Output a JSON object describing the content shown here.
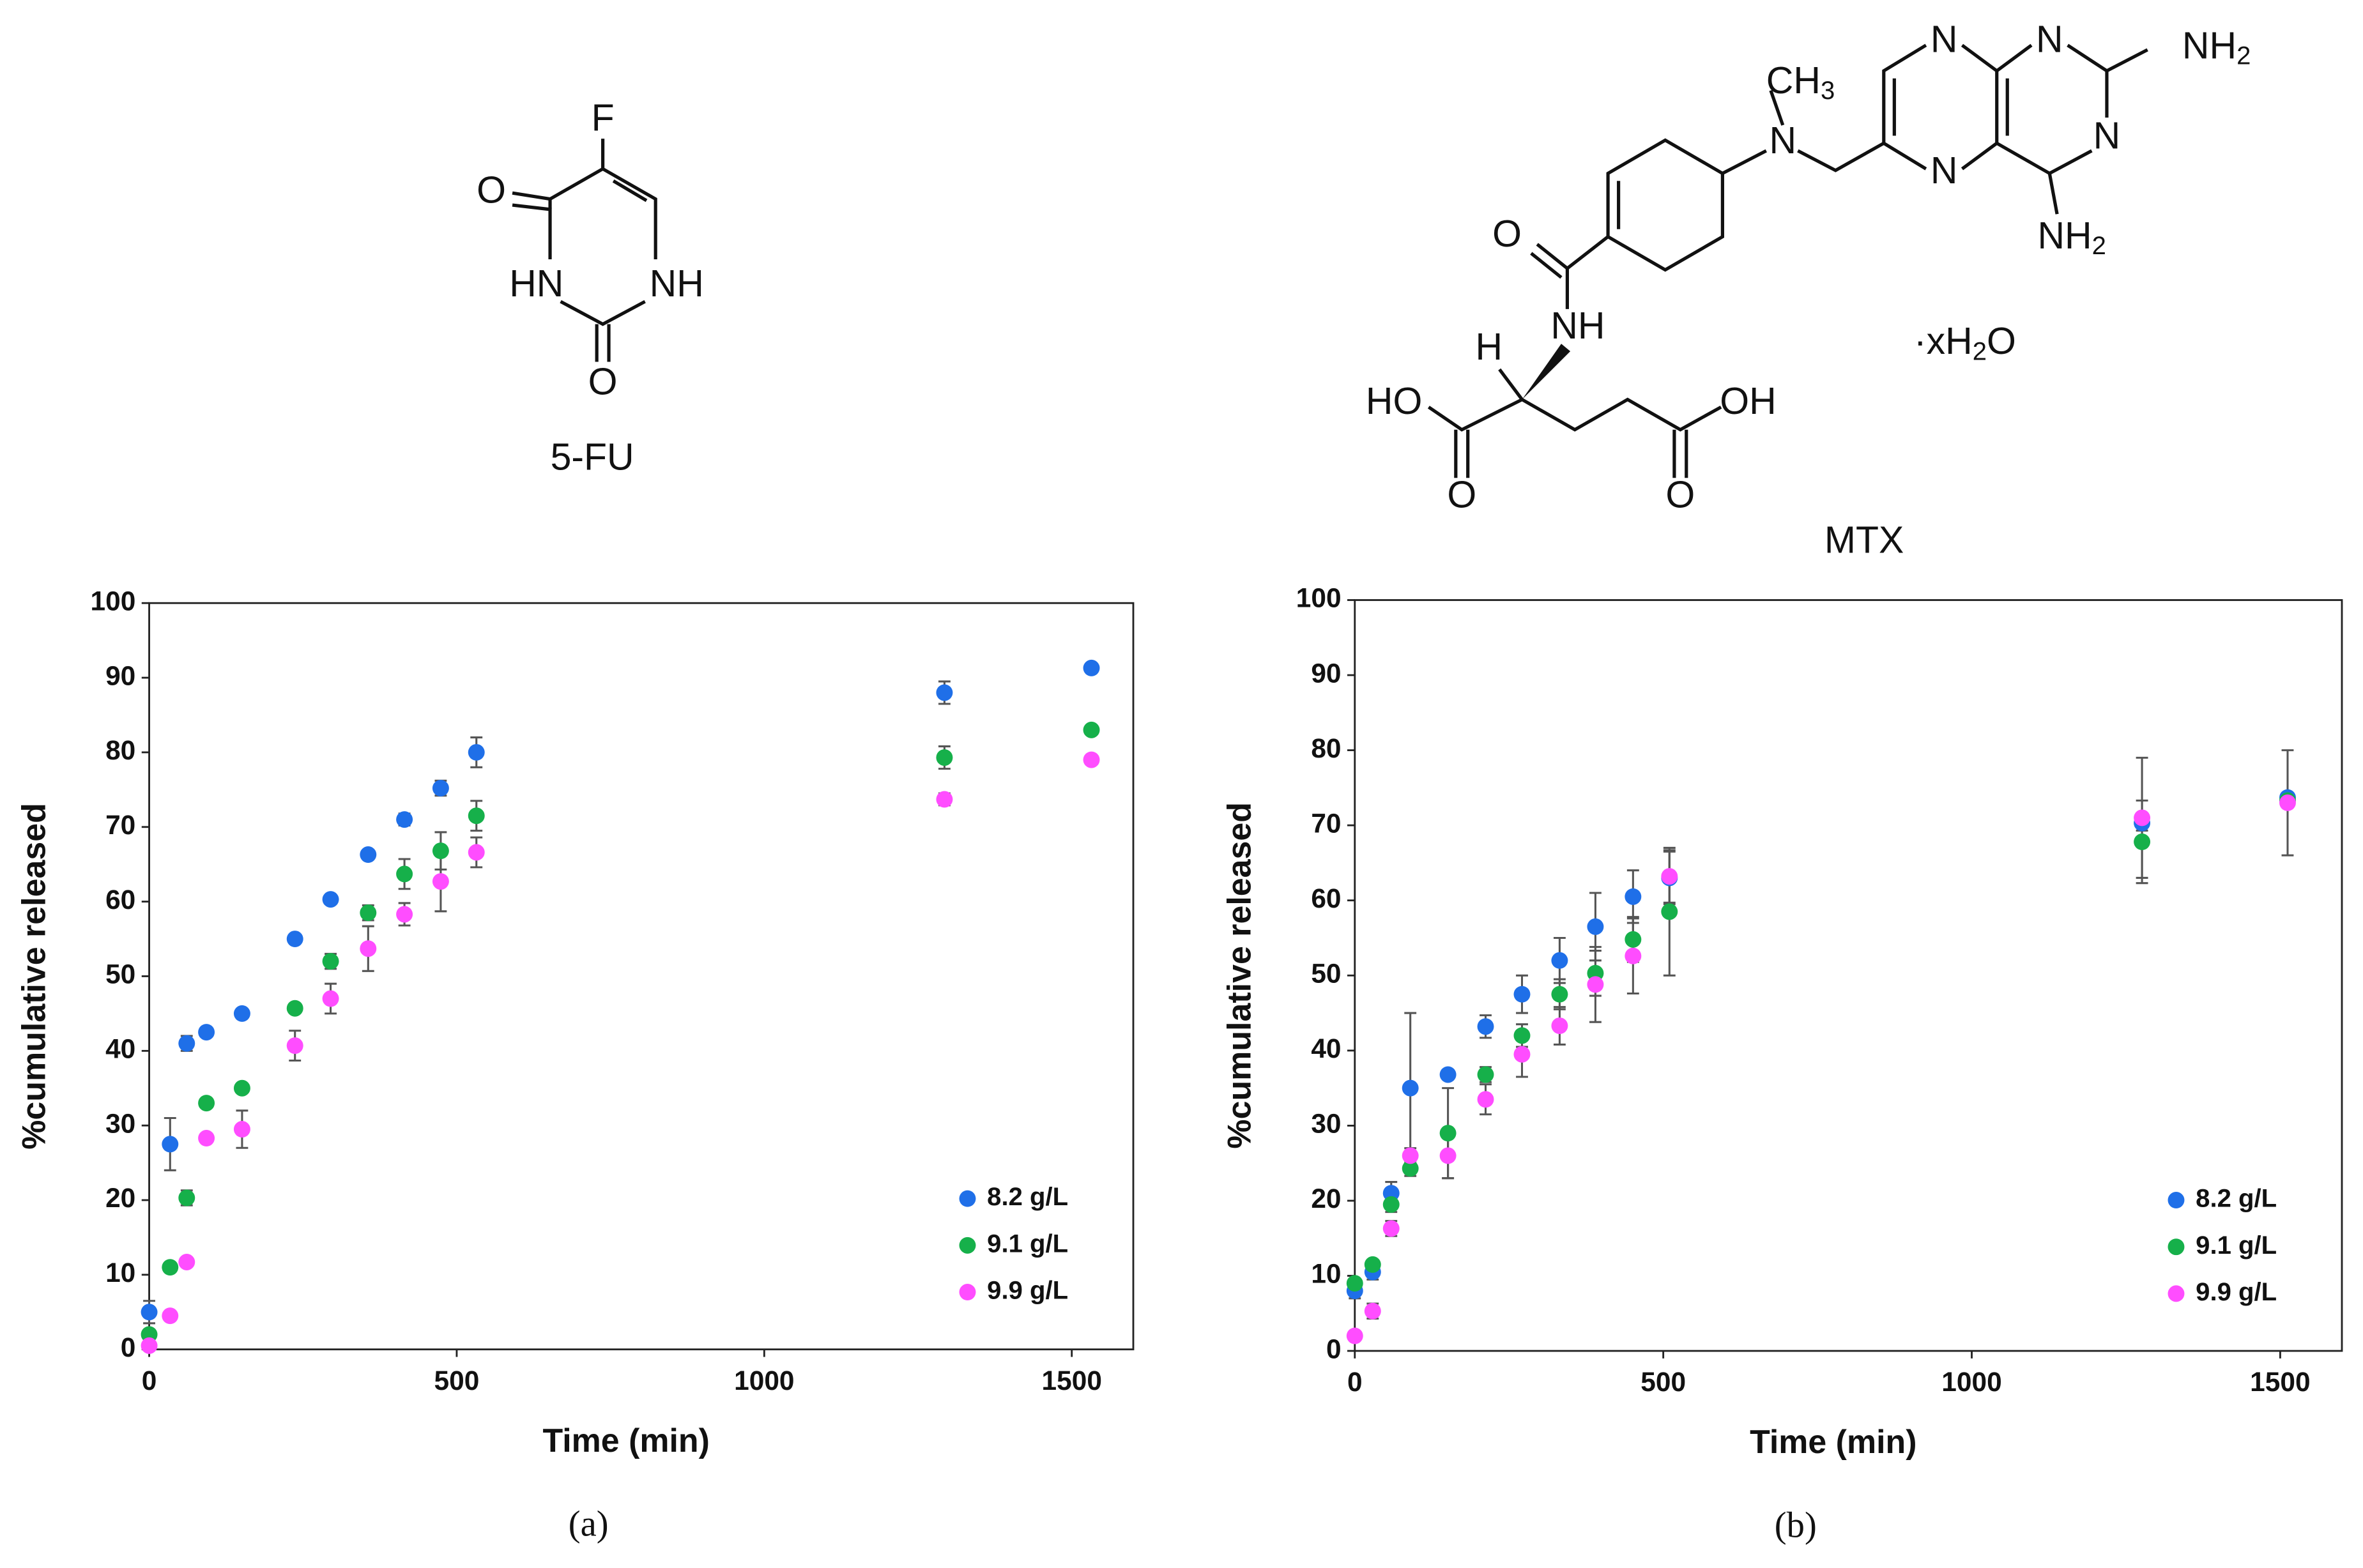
{
  "structures": {
    "fu": {
      "atoms": [
        "F",
        "O",
        "HN",
        "NH",
        "O"
      ],
      "name": "5-FU"
    },
    "mtx": {
      "atoms": [
        "N",
        "N",
        [
          "NH",
          "2"
        ],
        "N",
        [
          "NH",
          "2"
        ],
        "N",
        [
          "CH",
          "3"
        ],
        "N",
        "O",
        "NH",
        "H",
        "HO",
        "OH",
        "O",
        "O",
        [
          "·xH",
          "2",
          "O"
        ]
      ],
      "name": "MTX"
    }
  },
  "chart_data": [
    {
      "type": "scatter",
      "panel": "(a)",
      "xlabel": "Time (min)",
      "ylabel": "%cumulative released",
      "x": [
        0,
        34,
        61,
        93,
        151,
        237,
        295,
        356,
        415,
        474,
        532,
        1293,
        1532
      ],
      "xlim": [
        0,
        1600
      ],
      "xticks": [
        0,
        500,
        1000,
        1500
      ],
      "ylim": [
        0,
        100
      ],
      "yticks": [
        0,
        10,
        20,
        30,
        40,
        50,
        60,
        70,
        80,
        90,
        100
      ],
      "legend": "lower right",
      "series": [
        {
          "name": "8.2 g/L",
          "color": "#1f6fe8",
          "values": [
            5,
            27.5,
            41,
            42.5,
            45,
            55,
            60.3,
            66.3,
            71,
            75.2,
            80,
            88,
            91.3
          ],
          "errors": [
            1.5,
            3.5,
            1,
            0.5,
            0.5,
            0.5,
            0.5,
            0.5,
            0.8,
            1,
            2,
            1.5,
            0.5
          ]
        },
        {
          "name": "9.1 g/L",
          "color": "#16b04a",
          "values": [
            2,
            11,
            20.3,
            33,
            35,
            45.7,
            52,
            58.5,
            63.7,
            66.8,
            71.5,
            79.3,
            83
          ],
          "errors": [
            0.5,
            0.5,
            1,
            0.5,
            0.5,
            0.5,
            1,
            1,
            2,
            2.5,
            2,
            1.5,
            0.5
          ]
        },
        {
          "name": "9.9 g/L",
          "color": "#ff4dff",
          "values": [
            0.5,
            4.5,
            11.7,
            28.3,
            29.5,
            40.7,
            47,
            53.7,
            58.3,
            62.7,
            66.6,
            73.7,
            79
          ],
          "errors": [
            0.5,
            0.5,
            0.5,
            0.5,
            2.5,
            2,
            2,
            3,
            1.5,
            4,
            2,
            0.8,
            0.5
          ]
        }
      ]
    },
    {
      "type": "scatter",
      "panel": "(b)",
      "xlabel": "Time (min)",
      "ylabel": "%cumulative released",
      "x": [
        0,
        29,
        59,
        90,
        151,
        212,
        271,
        332,
        390,
        451,
        510,
        1276,
        1512
      ],
      "xlim": [
        0,
        1600
      ],
      "xticks": [
        0,
        500,
        1000,
        1500
      ],
      "ylim": [
        0,
        100
      ],
      "yticks": [
        0,
        10,
        20,
        30,
        40,
        50,
        60,
        70,
        80,
        90,
        100
      ],
      "legend": "lower right",
      "series": [
        {
          "name": "8.2 g/L",
          "color": "#1f6fe8",
          "values": [
            8,
            10.5,
            21,
            35,
            36.8,
            43.2,
            47.5,
            52,
            56.5,
            60.5,
            63,
            70.3,
            73.7
          ],
          "errors": [
            1,
            1,
            1.5,
            10,
            0.5,
            1.5,
            2.5,
            3,
            4.5,
            3.5,
            3.5,
            1,
            0.5
          ]
        },
        {
          "name": "9.1 g/L",
          "color": "#16b04a",
          "values": [
            9,
            11.5,
            19.5,
            24.3,
            29,
            36.8,
            42,
            47.5,
            50.3,
            54.8,
            58.5,
            67.8,
            73.3
          ],
          "errors": [
            0.5,
            0.5,
            1,
            1,
            6,
            1,
            1.5,
            2,
            3,
            3,
            8.5,
            5.5,
            0.5
          ]
        },
        {
          "name": "9.9 g/L",
          "color": "#ff4dff",
          "values": [
            2,
            5.3,
            16.3,
            26,
            26,
            33.5,
            39.5,
            43.3,
            48.8,
            52.6,
            63.2,
            71,
            73
          ],
          "errors": [
            0.5,
            1,
            1,
            1,
            3,
            2,
            3,
            2.5,
            5,
            5,
            3.5,
            8,
            7
          ]
        }
      ]
    }
  ]
}
